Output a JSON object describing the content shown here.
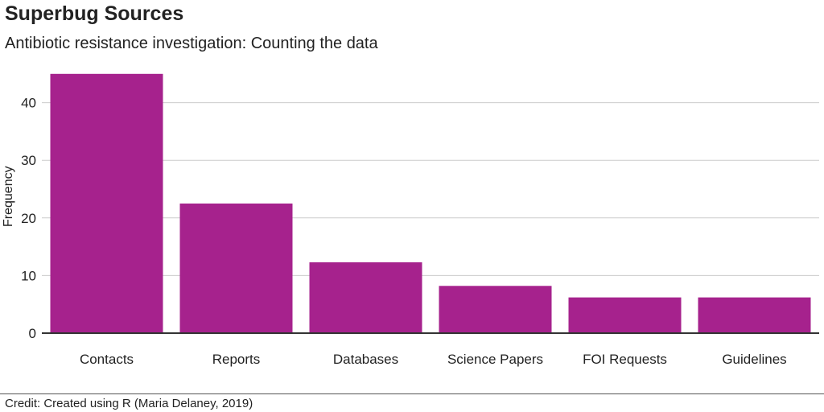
{
  "title": "Superbug Sources",
  "subtitle": "Antibiotic resistance investigation: Counting the data",
  "credit": "Credit: Created using R (Maria Delaney, 2019)",
  "colors": {
    "bar": "#A6228D",
    "grid": "#CBCBCB",
    "axis": "#333333",
    "text": "#222222"
  },
  "chart_data": {
    "type": "bar",
    "categories": [
      "Contacts",
      "Reports",
      "Databases",
      "Science Papers",
      "FOI Requests",
      "Guidelines"
    ],
    "values": [
      45,
      22.5,
      12.3,
      8.2,
      6.2,
      6.2
    ],
    "xlabel": "",
    "ylabel": "Frequency",
    "yticks": [
      0,
      10,
      20,
      30,
      40
    ],
    "ylim": [
      0,
      45
    ],
    "grid": "horizontal"
  }
}
